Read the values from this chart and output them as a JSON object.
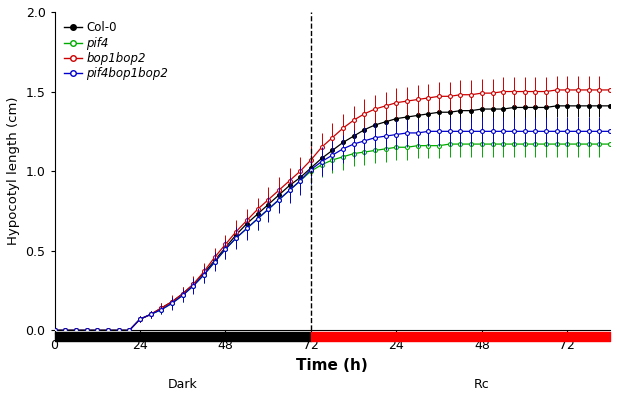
{
  "ylabel": "Hypocotyl length (cm)",
  "xlabel": "Time (h)",
  "ylim": [
    0.0,
    2.0
  ],
  "yticks": [
    0.0,
    0.5,
    1.0,
    1.5,
    2.0
  ],
  "dark_label": "Dark",
  "rc_label": "Rc",
  "legend_labels": [
    "Col-0",
    "pif4",
    "bop1bop2",
    "pif4bop1bop2"
  ],
  "legend_italic": [
    false,
    true,
    true,
    true
  ],
  "colors": [
    "#000000",
    "#00aa00",
    "#cc0000",
    "#0000cc"
  ],
  "x": [
    0,
    3,
    6,
    9,
    12,
    15,
    18,
    21,
    24,
    27,
    30,
    33,
    36,
    39,
    42,
    45,
    48,
    51,
    54,
    57,
    60,
    63,
    66,
    69,
    72,
    75,
    78,
    81,
    84,
    87,
    90,
    93,
    96,
    99,
    102,
    105,
    108,
    111,
    114,
    117,
    120,
    123,
    126,
    129,
    132,
    135,
    138,
    141,
    144,
    147,
    150,
    153,
    156
  ],
  "col0_y": [
    0.0,
    0.0,
    0.0,
    0.0,
    0.0,
    0.0,
    0.0,
    0.0,
    0.07,
    0.1,
    0.14,
    0.18,
    0.23,
    0.29,
    0.36,
    0.44,
    0.52,
    0.6,
    0.67,
    0.73,
    0.79,
    0.85,
    0.91,
    0.96,
    1.02,
    1.08,
    1.13,
    1.18,
    1.22,
    1.26,
    1.29,
    1.31,
    1.33,
    1.34,
    1.35,
    1.36,
    1.37,
    1.37,
    1.38,
    1.38,
    1.39,
    1.39,
    1.39,
    1.4,
    1.4,
    1.4,
    1.4,
    1.41,
    1.41,
    1.41,
    1.41,
    1.41,
    1.41
  ],
  "col0_e": [
    0.0,
    0.0,
    0.0,
    0.0,
    0.0,
    0.0,
    0.0,
    0.0,
    0.02,
    0.02,
    0.03,
    0.03,
    0.04,
    0.04,
    0.05,
    0.05,
    0.06,
    0.06,
    0.06,
    0.07,
    0.07,
    0.07,
    0.07,
    0.07,
    0.08,
    0.07,
    0.07,
    0.07,
    0.07,
    0.07,
    0.07,
    0.07,
    0.07,
    0.07,
    0.07,
    0.07,
    0.07,
    0.07,
    0.07,
    0.07,
    0.07,
    0.07,
    0.07,
    0.07,
    0.07,
    0.07,
    0.07,
    0.07,
    0.07,
    0.07,
    0.07,
    0.07,
    0.07
  ],
  "pif4_y": [
    0.0,
    0.0,
    0.0,
    0.0,
    0.0,
    0.0,
    0.0,
    0.0,
    0.07,
    0.1,
    0.13,
    0.17,
    0.22,
    0.28,
    0.35,
    0.43,
    0.51,
    0.58,
    0.64,
    0.7,
    0.76,
    0.82,
    0.88,
    0.94,
    1.0,
    1.04,
    1.07,
    1.09,
    1.11,
    1.12,
    1.13,
    1.14,
    1.15,
    1.15,
    1.16,
    1.16,
    1.16,
    1.17,
    1.17,
    1.17,
    1.17,
    1.17,
    1.17,
    1.17,
    1.17,
    1.17,
    1.17,
    1.17,
    1.17,
    1.17,
    1.17,
    1.17,
    1.17
  ],
  "pif4_e": [
    0.0,
    0.0,
    0.0,
    0.0,
    0.0,
    0.0,
    0.0,
    0.0,
    0.02,
    0.02,
    0.03,
    0.03,
    0.04,
    0.04,
    0.05,
    0.05,
    0.06,
    0.06,
    0.06,
    0.07,
    0.07,
    0.07,
    0.07,
    0.07,
    0.08,
    0.08,
    0.08,
    0.08,
    0.08,
    0.08,
    0.08,
    0.08,
    0.08,
    0.08,
    0.08,
    0.08,
    0.08,
    0.08,
    0.08,
    0.08,
    0.08,
    0.08,
    0.08,
    0.08,
    0.08,
    0.08,
    0.08,
    0.08,
    0.08,
    0.08,
    0.08,
    0.08,
    0.08
  ],
  "bop1bop2_y": [
    0.0,
    0.0,
    0.0,
    0.0,
    0.0,
    0.0,
    0.0,
    0.0,
    0.07,
    0.1,
    0.14,
    0.18,
    0.23,
    0.29,
    0.37,
    0.46,
    0.54,
    0.62,
    0.69,
    0.76,
    0.82,
    0.88,
    0.94,
    1.0,
    1.07,
    1.15,
    1.21,
    1.27,
    1.32,
    1.36,
    1.39,
    1.41,
    1.43,
    1.44,
    1.45,
    1.46,
    1.47,
    1.47,
    1.48,
    1.48,
    1.49,
    1.49,
    1.5,
    1.5,
    1.5,
    1.5,
    1.5,
    1.51,
    1.51,
    1.51,
    1.51,
    1.51,
    1.51
  ],
  "bop1bop2_e": [
    0.0,
    0.0,
    0.0,
    0.0,
    0.0,
    0.0,
    0.0,
    0.0,
    0.02,
    0.02,
    0.03,
    0.04,
    0.04,
    0.05,
    0.05,
    0.06,
    0.06,
    0.07,
    0.07,
    0.07,
    0.08,
    0.08,
    0.08,
    0.09,
    0.09,
    0.09,
    0.09,
    0.09,
    0.09,
    0.09,
    0.09,
    0.09,
    0.09,
    0.09,
    0.09,
    0.09,
    0.09,
    0.09,
    0.09,
    0.09,
    0.09,
    0.09,
    0.09,
    0.09,
    0.09,
    0.09,
    0.09,
    0.09,
    0.09,
    0.09,
    0.09,
    0.09,
    0.09
  ],
  "pif4bop1bop2_y": [
    0.0,
    0.0,
    0.0,
    0.0,
    0.0,
    0.0,
    0.0,
    0.0,
    0.07,
    0.1,
    0.13,
    0.17,
    0.22,
    0.28,
    0.35,
    0.43,
    0.51,
    0.58,
    0.64,
    0.7,
    0.76,
    0.82,
    0.88,
    0.94,
    1.01,
    1.06,
    1.1,
    1.14,
    1.17,
    1.19,
    1.21,
    1.22,
    1.23,
    1.24,
    1.24,
    1.25,
    1.25,
    1.25,
    1.25,
    1.25,
    1.25,
    1.25,
    1.25,
    1.25,
    1.25,
    1.25,
    1.25,
    1.25,
    1.25,
    1.25,
    1.25,
    1.25,
    1.25
  ],
  "pif4bop1bop2_e": [
    0.0,
    0.0,
    0.0,
    0.0,
    0.0,
    0.0,
    0.0,
    0.0,
    0.02,
    0.02,
    0.03,
    0.04,
    0.04,
    0.05,
    0.05,
    0.06,
    0.06,
    0.07,
    0.07,
    0.07,
    0.08,
    0.08,
    0.08,
    0.09,
    0.09,
    0.09,
    0.09,
    0.09,
    0.09,
    0.09,
    0.09,
    0.09,
    0.09,
    0.09,
    0.09,
    0.09,
    0.09,
    0.09,
    0.09,
    0.09,
    0.09,
    0.09,
    0.09,
    0.09,
    0.09,
    0.09,
    0.09,
    0.09,
    0.09,
    0.09,
    0.09,
    0.09,
    0.09
  ]
}
